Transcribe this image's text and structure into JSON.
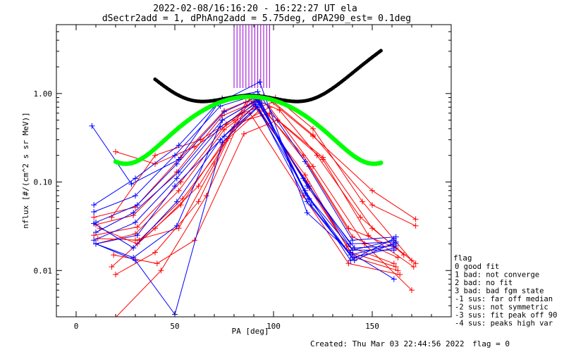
{
  "chart_data": {
    "type": "line",
    "title": "2022-02-08/16:16:20 - 16:22:27 UT ela",
    "subtitle": "dSectr2add = 1, dPhAng2add = 5.75deg, dPA290_est=   0.1deg",
    "xlabel": "PA [deg]",
    "ylabel": "nflux [#/(cm^2 s sr MeV)]",
    "xlim": [
      -10,
      190
    ],
    "ylim": [
      0.003,
      6
    ],
    "yscale": "log",
    "x_ticks": [
      0,
      50,
      100,
      150
    ],
    "y_ticks": [
      0.01,
      0.1,
      1.0
    ],
    "y_tick_labels": [
      "0.01",
      "0.10",
      "1.00"
    ],
    "colors": {
      "red_series": "#ff0000",
      "blue_series": "#0000ff",
      "black_fit": "#000000",
      "green_fit": "#00ff00",
      "markers": "#9900cc"
    },
    "red_series": [
      {
        "x": [
          9,
          30,
          53,
          75,
          90,
          115,
          138,
          162
        ],
        "y": [
          0.04,
          0.052,
          0.19,
          0.64,
          0.88,
          0.2,
          0.03,
          0.018
        ]
      },
      {
        "x": [
          10,
          29,
          51,
          74,
          92,
          118,
          140,
          163
        ],
        "y": [
          0.033,
          0.042,
          0.13,
          0.56,
          0.83,
          0.15,
          0.024,
          0.014
        ]
      },
      {
        "x": [
          9,
          31,
          53,
          76,
          89,
          116,
          137,
          161
        ],
        "y": [
          0.025,
          0.031,
          0.1,
          0.45,
          0.78,
          0.12,
          0.019,
          0.012
        ]
      },
      {
        "x": [
          10,
          30,
          52,
          75,
          91,
          117,
          139,
          162
        ],
        "y": [
          0.02,
          0.026,
          0.08,
          0.39,
          0.72,
          0.1,
          0.016,
          0.011
        ]
      },
      {
        "x": [
          11,
          32,
          54,
          77,
          93,
          118,
          141,
          163
        ],
        "y": [
          0.023,
          0.022,
          0.065,
          0.31,
          0.65,
          0.085,
          0.014,
          0.01
        ]
      },
      {
        "x": [
          12,
          31,
          53,
          74,
          88,
          115,
          138,
          164
        ],
        "y": [
          0.03,
          0.02,
          0.055,
          0.27,
          0.6,
          0.07,
          0.012,
          0.009
        ]
      },
      {
        "x": [
          20,
          40,
          60,
          80,
          95,
          120,
          150,
          172
        ],
        "y": [
          0.22,
          0.16,
          0.25,
          0.5,
          0.95,
          0.33,
          0.08,
          0.038
        ]
      },
      {
        "x": [
          18,
          40,
          63,
          84,
          100,
          120,
          150,
          172
        ],
        "y": [
          0.04,
          0.2,
          0.3,
          0.6,
          0.8,
          0.34,
          0.055,
          0.032
        ]
      },
      {
        "x": [
          18,
          40,
          62,
          82,
          98,
          125,
          150,
          172
        ],
        "y": [
          0.011,
          0.03,
          0.09,
          0.47,
          0.6,
          0.19,
          0.03,
          0.012
        ]
      },
      {
        "x": [
          19,
          41,
          60,
          85,
          102,
          125,
          148,
          171
        ],
        "y": [
          0.015,
          0.012,
          0.022,
          0.35,
          0.5,
          0.18,
          0.025,
          0.011
        ]
      },
      {
        "x": [
          20,
          40,
          62,
          80,
          98,
          120,
          146,
          170
        ],
        "y": [
          0.009,
          0.016,
          0.06,
          0.42,
          0.7,
          0.15,
          0.02,
          0.006
        ]
      },
      {
        "x": [
          30,
          52,
          70,
          86,
          101,
          120,
          145,
          170
        ],
        "y": [
          0.022,
          0.03,
          0.16,
          0.8,
          0.9,
          0.4,
          0.06,
          0.013
        ]
      },
      {
        "x": [
          19,
          43,
          66,
          88,
          103,
          122,
          144,
          166
        ],
        "y": [
          0.0028,
          0.01,
          0.07,
          0.9,
          0.65,
          0.2,
          0.04,
          0.015
        ]
      }
    ],
    "blue_series": [
      {
        "x": [
          8,
          28,
          52,
          72,
          93,
          117,
          139,
          161
        ],
        "y": [
          0.43,
          0.095,
          0.18,
          0.78,
          1.35,
          0.045,
          0.016,
          0.008
        ]
      },
      {
        "x": [
          9,
          30,
          52,
          74,
          92,
          116,
          140,
          162
        ],
        "y": [
          0.055,
          0.11,
          0.26,
          0.88,
          1.05,
          0.17,
          0.022,
          0.024
        ]
      },
      {
        "x": [
          9,
          30,
          50,
          73,
          90,
          115,
          139,
          161
        ],
        "y": [
          0.046,
          0.07,
          0.2,
          0.72,
          0.94,
          0.11,
          0.02,
          0.021
        ]
      },
      {
        "x": [
          10,
          31,
          51,
          75,
          91,
          117,
          141,
          162
        ],
        "y": [
          0.035,
          0.055,
          0.16,
          0.62,
          0.9,
          0.09,
          0.018,
          0.019
        ]
      },
      {
        "x": [
          10,
          29,
          52,
          74,
          92,
          116,
          140,
          161
        ],
        "y": [
          0.027,
          0.045,
          0.13,
          0.5,
          0.86,
          0.075,
          0.017,
          0.022
        ]
      },
      {
        "x": [
          9,
          30,
          51,
          73,
          93,
          118,
          139,
          162
        ],
        "y": [
          0.022,
          0.035,
          0.11,
          0.42,
          0.82,
          0.065,
          0.015,
          0.02
        ]
      },
      {
        "x": [
          10,
          31,
          50,
          75,
          94,
          119,
          140,
          161
        ],
        "y": [
          0.02,
          0.025,
          0.09,
          0.33,
          0.78,
          0.055,
          0.014,
          0.018
        ]
      },
      {
        "x": [
          10,
          29,
          51,
          74,
          90,
          116,
          139,
          161
        ],
        "y": [
          0.02,
          0.014,
          0.032,
          0.5,
          0.8,
          0.08,
          0.013,
          0.023
        ]
      },
      {
        "x": [
          10,
          30,
          50,
          74,
          92,
          117,
          141,
          162
        ],
        "y": [
          0.02,
          0.013,
          0.0032,
          0.28,
          0.7,
          0.06,
          0.013,
          0.021
        ]
      },
      {
        "x": [
          9,
          29,
          51,
          73,
          91,
          118,
          140,
          161
        ],
        "y": [
          0.034,
          0.018,
          0.06,
          0.3,
          0.75,
          0.09,
          0.017,
          0.017
        ]
      }
    ],
    "black_fit": {
      "pa_range": [
        40,
        155
      ],
      "center": 88,
      "peak": 0.95,
      "width": 25,
      "arm_coeff": 0.0022,
      "arm_exp": 2.6
    },
    "green_fit": {
      "pa_range": [
        20,
        155
      ],
      "center": 88,
      "peak": 0.92,
      "width": 28,
      "arm_coeff": 3.2e-06,
      "arm_exp": 4.3
    },
    "marker_lines_x": [
      80,
      81.5,
      83,
      84.5,
      86,
      87.5,
      89,
      90.5,
      92,
      93.5,
      95,
      96.5,
      98
    ],
    "legend": {
      "title": "flag",
      "entries": [
        " 0 good fit",
        " 1 bad: not converge",
        " 2 bad: no fit",
        " 3 bad: bad fgm state",
        "-1 sus: far off median",
        "-2 sus: not symmetric",
        "-3 sus: fit peak off 90",
        "-4 sus: peaks high var"
      ]
    },
    "footer": {
      "created": "Created: Thu Mar 03 22:44:56 2022",
      "flag": "flag = 0"
    }
  }
}
